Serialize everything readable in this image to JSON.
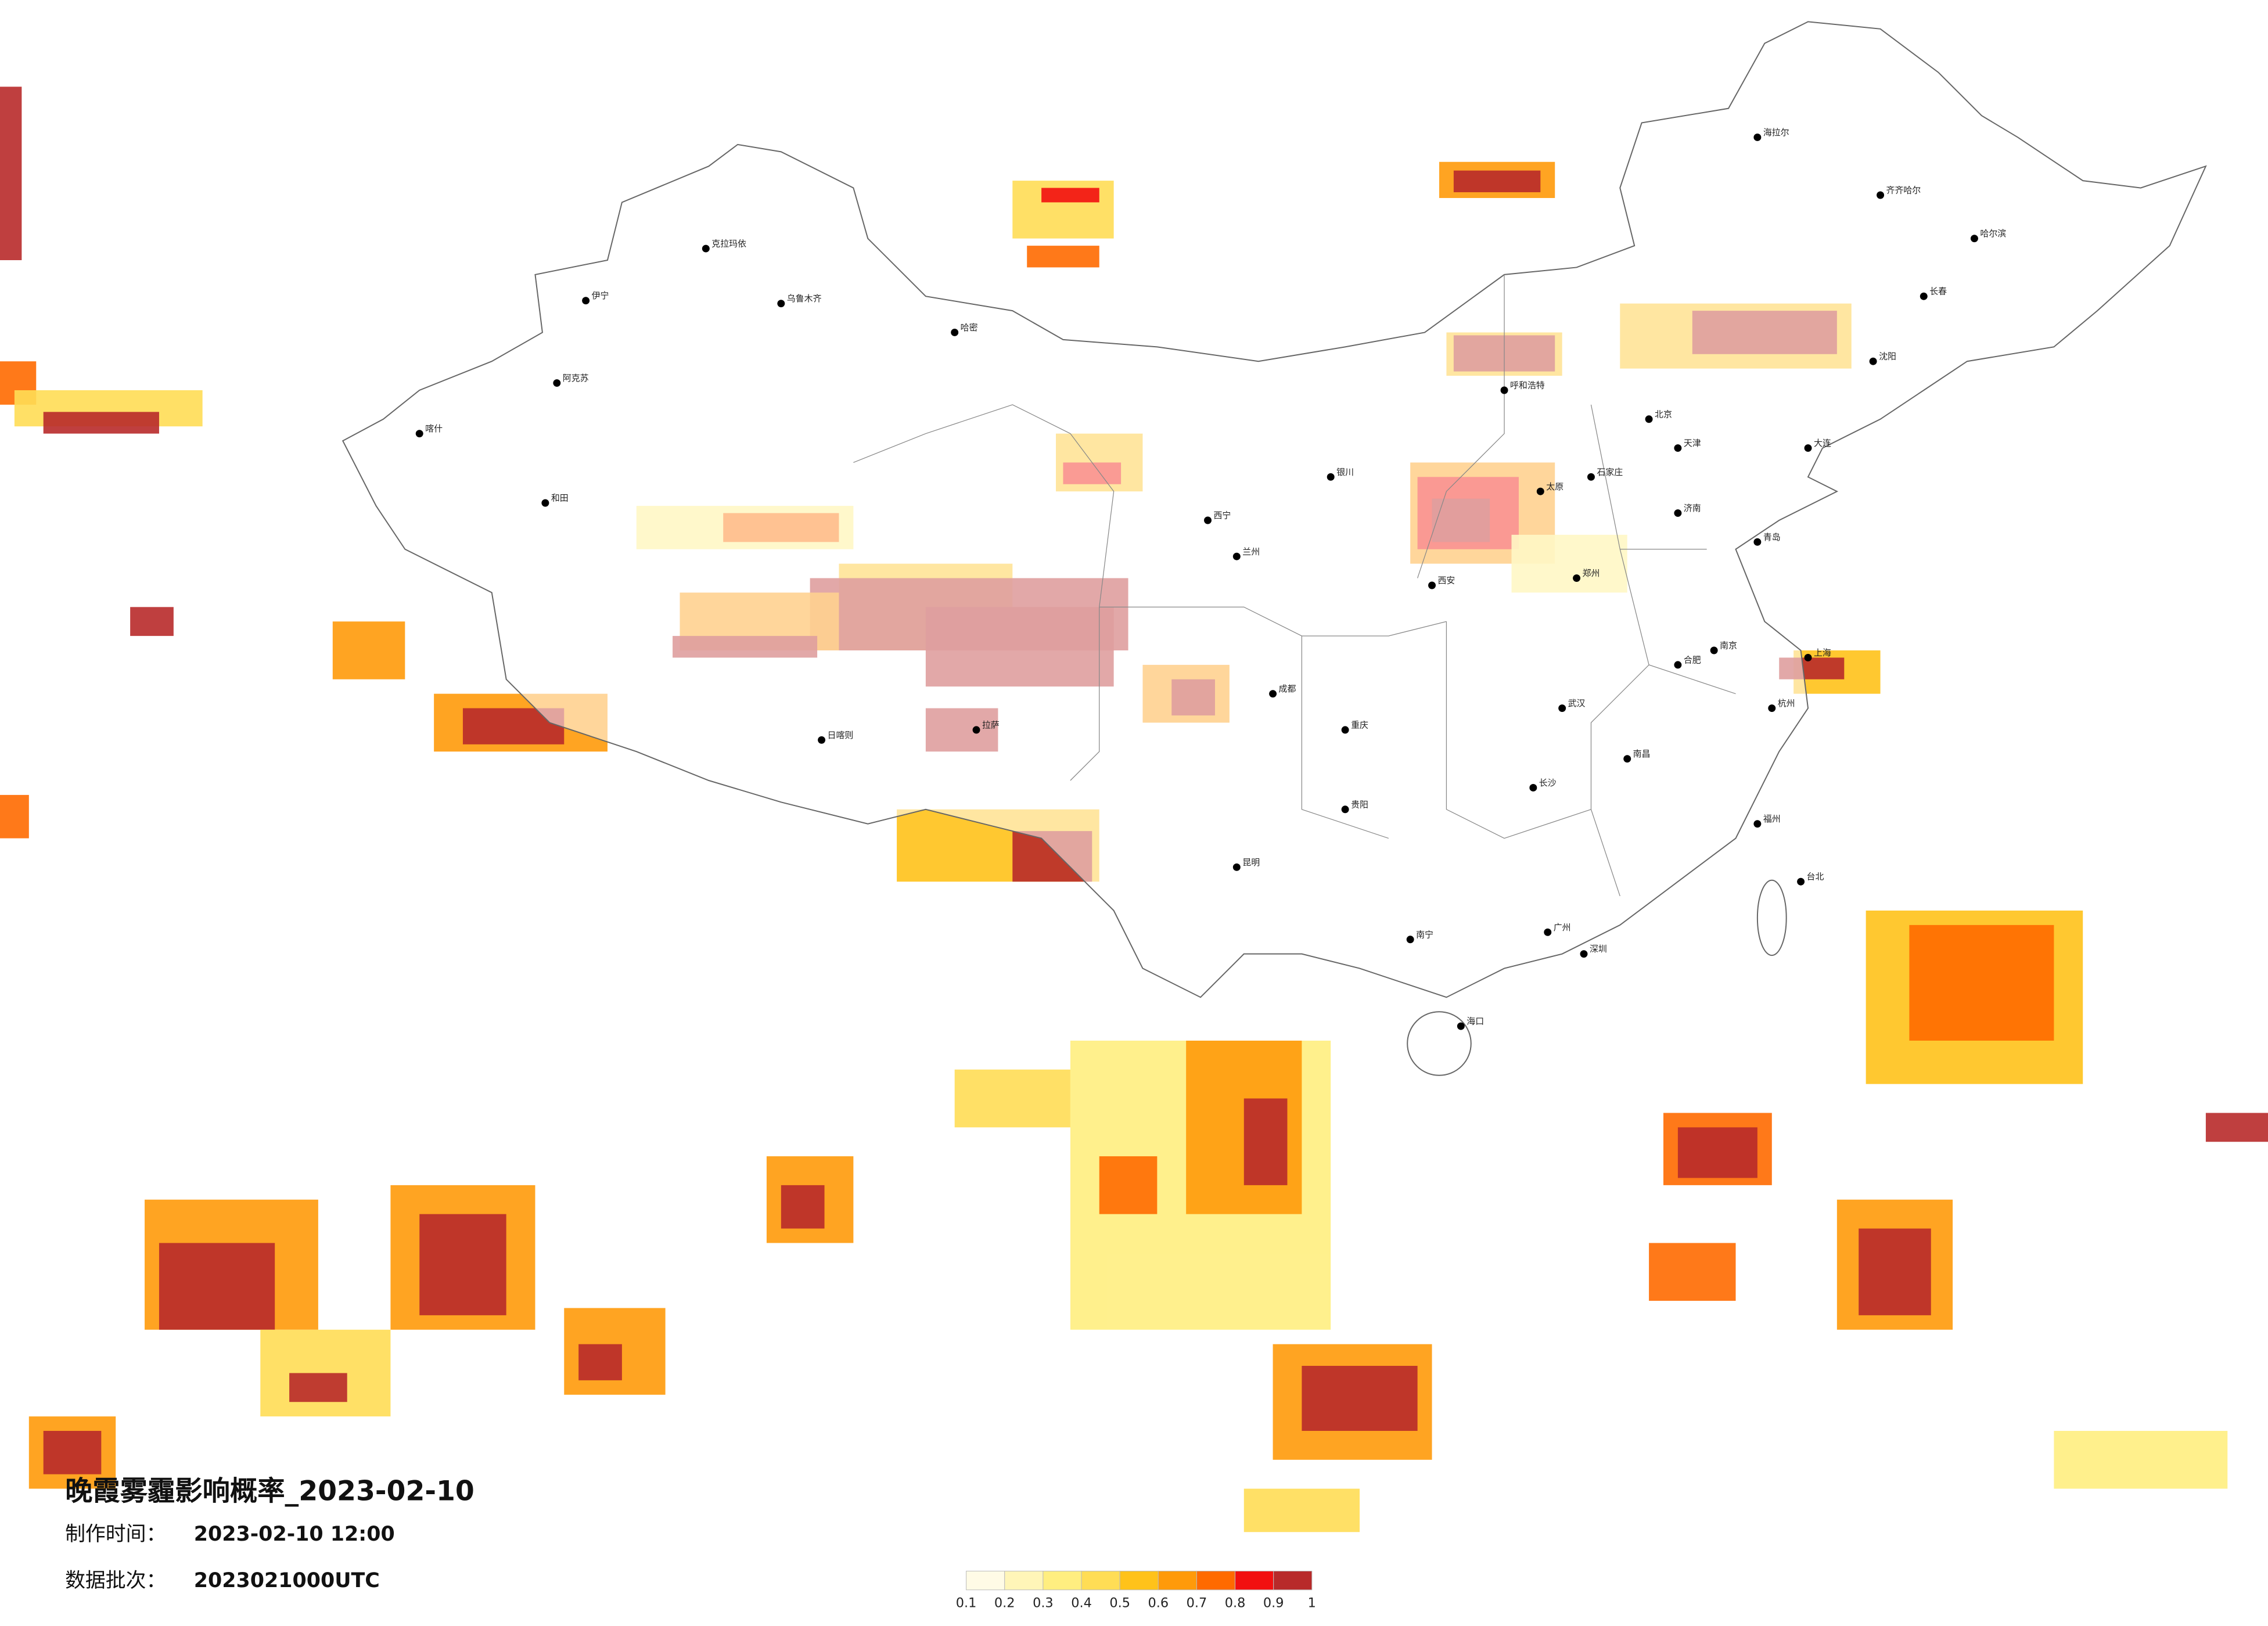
{
  "title": "晚霞雾霾影响概率_2023-02-10",
  "info": [
    {
      "label": "制作时间：",
      "value": "2023-02-10 12:00"
    },
    {
      "label": "数据批次：",
      "value": "2023021000UTC"
    }
  ],
  "legend": {
    "ticks": [
      0.1,
      0.2,
      0.3,
      0.4,
      0.5,
      0.6,
      0.7,
      0.8,
      0.9,
      1
    ],
    "colors": [
      "#fffbe6",
      "#fff5b8",
      "#ffee80",
      "#ffdd55",
      "#ffc21a",
      "#ff9a0a",
      "#ff6a00",
      "#f21010",
      "#b82a2a"
    ]
  },
  "cities": [
    "克拉玛依",
    "伊宁",
    "阿克苏",
    "和田",
    "喀什",
    "乌鲁木齐",
    "哈密",
    "拉萨",
    "日喀则",
    "西宁",
    "兰州",
    "银川",
    "呼和浩特",
    "北京",
    "天津",
    "石家庄",
    "太原",
    "西安",
    "郑州",
    "济南",
    "青岛",
    "南京",
    "上海",
    "杭州",
    "合肥",
    "武汉",
    "长沙",
    "南昌",
    "福州",
    "台北",
    "广州",
    "深圳",
    "海口",
    "南宁",
    "贵阳",
    "昆明",
    "成都",
    "重庆",
    "哈尔滨",
    "长春",
    "沈阳",
    "大连",
    "齐齐哈尔",
    "海拉尔"
  ]
}
